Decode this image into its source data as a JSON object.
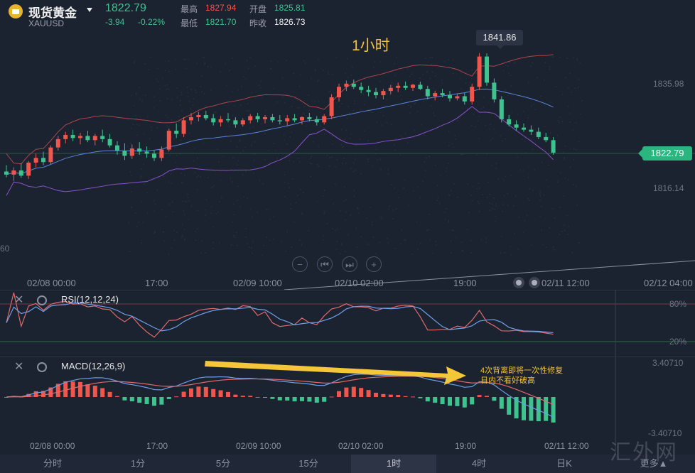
{
  "header": {
    "title": "现货黄金",
    "symbol": "XAUUSD",
    "last_price": "1822.79",
    "change": "-3.94",
    "change_pct": "-0.22%",
    "high_label": "最高",
    "high_value": "1827.94",
    "low_label": "最低",
    "low_value": "1821.70",
    "open_label": "开盘",
    "open_value": "1825.81",
    "prev_close_label": "昨收",
    "prev_close_value": "1826.73"
  },
  "chart": {
    "period_label": "1小时",
    "peak_label": "1841.86",
    "price_axis": [
      "1835.98",
      "1816.14"
    ],
    "left_edge_label": "60",
    "current_price_tag": "1822.79",
    "x_axis": [
      "02/08 00:00",
      "17:00",
      "02/09 10:00",
      "02/10 02:00",
      "19:00",
      "02/11 12:00",
      "02/12 04:00"
    ],
    "zoom_controls": [
      "−",
      "⏮",
      "⏭",
      "+"
    ]
  },
  "rsi": {
    "title": "RSI(12,12,24)",
    "levels": [
      "80%",
      "20%"
    ]
  },
  "macd": {
    "title": "MACD(12,26,9)",
    "axis": [
      "3.40710",
      "-3.40710"
    ],
    "x_axis": [
      "02/08 00:00",
      "17:00",
      "02/09 10:00",
      "02/10 02:00",
      "19:00",
      "02/11 12:00"
    ],
    "annotation_line1": "4次背离即将一次性修复",
    "annotation_line2": "日内不看好破高"
  },
  "tabs": [
    "分时",
    "1分",
    "5分",
    "15分",
    "1时",
    "4时",
    "日K",
    "更多▲"
  ],
  "active_tab": "1时",
  "watermark": "汇外网",
  "colors": {
    "up": "#f0564c",
    "down": "#3ec38e",
    "accent": "#f3c23c",
    "background": "#1b2230"
  },
  "chart_data": {
    "type": "candlestick",
    "title": "1小时",
    "candles": [
      {
        "o": 1819.2,
        "h": 1820.4,
        "l": 1818.1,
        "c": 1818.6
      },
      {
        "o": 1818.6,
        "h": 1820.0,
        "l": 1817.4,
        "c": 1819.4
      },
      {
        "o": 1819.4,
        "h": 1820.8,
        "l": 1818.0,
        "c": 1818.4
      },
      {
        "o": 1818.4,
        "h": 1821.2,
        "l": 1817.8,
        "c": 1820.9
      },
      {
        "o": 1820.9,
        "h": 1822.6,
        "l": 1820.0,
        "c": 1821.8
      },
      {
        "o": 1821.8,
        "h": 1823.0,
        "l": 1820.4,
        "c": 1821.0
      },
      {
        "o": 1821.0,
        "h": 1824.2,
        "l": 1820.6,
        "c": 1823.8
      },
      {
        "o": 1823.8,
        "h": 1826.0,
        "l": 1823.2,
        "c": 1825.4
      },
      {
        "o": 1825.4,
        "h": 1826.8,
        "l": 1824.6,
        "c": 1826.2
      },
      {
        "o": 1826.2,
        "h": 1827.2,
        "l": 1825.0,
        "c": 1825.6
      },
      {
        "o": 1825.6,
        "h": 1826.6,
        "l": 1824.4,
        "c": 1826.0
      },
      {
        "o": 1826.0,
        "h": 1827.0,
        "l": 1824.8,
        "c": 1825.2
      },
      {
        "o": 1825.2,
        "h": 1826.4,
        "l": 1824.2,
        "c": 1826.0
      },
      {
        "o": 1826.0,
        "h": 1827.2,
        "l": 1824.8,
        "c": 1825.4
      },
      {
        "o": 1825.4,
        "h": 1826.4,
        "l": 1823.8,
        "c": 1824.2
      },
      {
        "o": 1824.2,
        "h": 1825.0,
        "l": 1822.4,
        "c": 1823.2
      },
      {
        "o": 1823.2,
        "h": 1824.6,
        "l": 1821.4,
        "c": 1822.2
      },
      {
        "o": 1822.2,
        "h": 1824.4,
        "l": 1821.6,
        "c": 1823.6
      },
      {
        "o": 1823.6,
        "h": 1824.8,
        "l": 1822.4,
        "c": 1823.0
      },
      {
        "o": 1823.0,
        "h": 1824.0,
        "l": 1821.8,
        "c": 1822.6
      },
      {
        "o": 1822.6,
        "h": 1823.2,
        "l": 1821.2,
        "c": 1821.8
      },
      {
        "o": 1821.8,
        "h": 1824.0,
        "l": 1821.2,
        "c": 1823.4
      },
      {
        "o": 1823.4,
        "h": 1827.4,
        "l": 1823.0,
        "c": 1827.0
      },
      {
        "o": 1827.0,
        "h": 1828.4,
        "l": 1825.6,
        "c": 1826.4
      },
      {
        "o": 1826.4,
        "h": 1829.6,
        "l": 1825.8,
        "c": 1829.0
      },
      {
        "o": 1829.0,
        "h": 1830.4,
        "l": 1828.2,
        "c": 1829.6
      },
      {
        "o": 1829.6,
        "h": 1830.6,
        "l": 1828.8,
        "c": 1830.0
      },
      {
        "o": 1830.0,
        "h": 1830.8,
        "l": 1829.0,
        "c": 1829.4
      },
      {
        "o": 1829.4,
        "h": 1830.2,
        "l": 1828.0,
        "c": 1828.6
      },
      {
        "o": 1828.6,
        "h": 1829.8,
        "l": 1827.8,
        "c": 1829.2
      },
      {
        "o": 1829.2,
        "h": 1830.4,
        "l": 1828.6,
        "c": 1829.0
      },
      {
        "o": 1829.0,
        "h": 1829.6,
        "l": 1827.6,
        "c": 1828.2
      },
      {
        "o": 1828.2,
        "h": 1829.4,
        "l": 1827.8,
        "c": 1829.0
      },
      {
        "o": 1829.0,
        "h": 1830.2,
        "l": 1828.4,
        "c": 1829.8
      },
      {
        "o": 1829.8,
        "h": 1830.4,
        "l": 1828.6,
        "c": 1829.2
      },
      {
        "o": 1829.2,
        "h": 1830.0,
        "l": 1828.4,
        "c": 1829.6
      },
      {
        "o": 1829.6,
        "h": 1830.2,
        "l": 1828.6,
        "c": 1829.0
      },
      {
        "o": 1829.0,
        "h": 1830.0,
        "l": 1828.2,
        "c": 1828.8
      },
      {
        "o": 1828.8,
        "h": 1830.0,
        "l": 1828.0,
        "c": 1829.4
      },
      {
        "o": 1829.4,
        "h": 1830.2,
        "l": 1828.6,
        "c": 1829.0
      },
      {
        "o": 1829.0,
        "h": 1829.8,
        "l": 1828.2,
        "c": 1829.6
      },
      {
        "o": 1829.6,
        "h": 1830.4,
        "l": 1828.8,
        "c": 1829.2
      },
      {
        "o": 1829.2,
        "h": 1829.8,
        "l": 1828.0,
        "c": 1828.6
      },
      {
        "o": 1828.6,
        "h": 1830.2,
        "l": 1828.2,
        "c": 1829.8
      },
      {
        "o": 1829.8,
        "h": 1834.0,
        "l": 1829.2,
        "c": 1833.4
      },
      {
        "o": 1833.4,
        "h": 1836.0,
        "l": 1832.6,
        "c": 1835.4
      },
      {
        "o": 1835.4,
        "h": 1836.6,
        "l": 1834.6,
        "c": 1836.0
      },
      {
        "o": 1836.0,
        "h": 1836.8,
        "l": 1835.0,
        "c": 1835.4
      },
      {
        "o": 1835.4,
        "h": 1836.2,
        "l": 1834.2,
        "c": 1834.8
      },
      {
        "o": 1834.8,
        "h": 1835.6,
        "l": 1833.6,
        "c": 1834.4
      },
      {
        "o": 1834.4,
        "h": 1835.2,
        "l": 1833.2,
        "c": 1833.8
      },
      {
        "o": 1833.8,
        "h": 1835.0,
        "l": 1833.0,
        "c": 1834.6
      },
      {
        "o": 1834.6,
        "h": 1835.8,
        "l": 1834.0,
        "c": 1835.2
      },
      {
        "o": 1835.2,
        "h": 1836.2,
        "l": 1834.4,
        "c": 1835.6
      },
      {
        "o": 1835.6,
        "h": 1836.4,
        "l": 1834.8,
        "c": 1835.2
      },
      {
        "o": 1835.2,
        "h": 1836.0,
        "l": 1834.6,
        "c": 1835.8
      },
      {
        "o": 1835.8,
        "h": 1836.4,
        "l": 1834.8,
        "c": 1835.0
      },
      {
        "o": 1835.0,
        "h": 1835.6,
        "l": 1833.0,
        "c": 1833.6
      },
      {
        "o": 1833.6,
        "h": 1834.6,
        "l": 1832.8,
        "c": 1834.2
      },
      {
        "o": 1834.2,
        "h": 1835.0,
        "l": 1833.4,
        "c": 1833.8
      },
      {
        "o": 1833.8,
        "h": 1834.6,
        "l": 1832.6,
        "c": 1833.2
      },
      {
        "o": 1833.2,
        "h": 1834.0,
        "l": 1832.8,
        "c": 1833.6
      },
      {
        "o": 1833.6,
        "h": 1834.2,
        "l": 1832.0,
        "c": 1832.6
      },
      {
        "o": 1832.6,
        "h": 1836.0,
        "l": 1832.0,
        "c": 1835.4
      },
      {
        "o": 1835.4,
        "h": 1841.86,
        "l": 1834.8,
        "c": 1841.2
      },
      {
        "o": 1841.2,
        "h": 1841.8,
        "l": 1835.6,
        "c": 1836.2
      },
      {
        "o": 1836.2,
        "h": 1837.0,
        "l": 1832.4,
        "c": 1833.0
      },
      {
        "o": 1833.0,
        "h": 1833.6,
        "l": 1828.6,
        "c": 1829.2
      },
      {
        "o": 1829.2,
        "h": 1830.0,
        "l": 1827.8,
        "c": 1828.2
      },
      {
        "o": 1828.2,
        "h": 1829.0,
        "l": 1827.0,
        "c": 1827.6
      },
      {
        "o": 1827.6,
        "h": 1828.4,
        "l": 1826.8,
        "c": 1827.2
      },
      {
        "o": 1827.2,
        "h": 1828.0,
        "l": 1826.2,
        "c": 1826.8
      },
      {
        "o": 1826.8,
        "h": 1827.6,
        "l": 1825.4,
        "c": 1825.8
      },
      {
        "o": 1825.8,
        "h": 1826.6,
        "l": 1824.8,
        "c": 1825.2
      },
      {
        "o": 1825.2,
        "h": 1825.8,
        "l": 1822.4,
        "c": 1822.79
      }
    ]
  }
}
